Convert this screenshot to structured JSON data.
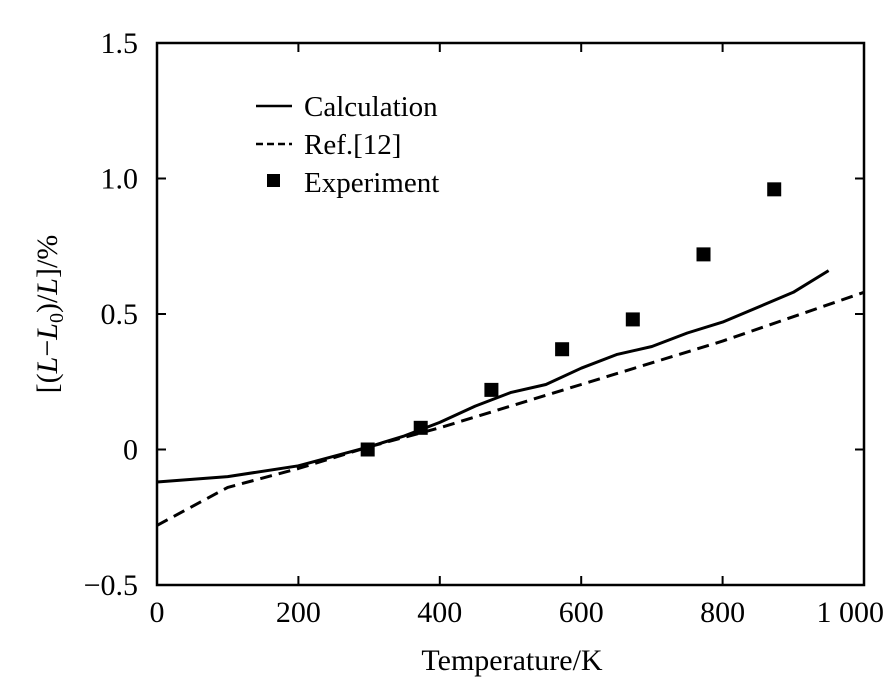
{
  "chart_data": {
    "type": "line",
    "xlabel": "Temperature/K",
    "ylabel": "[(L−L₀)/L]/%",
    "xlim": [
      0,
      1000
    ],
    "ylim": [
      -0.5,
      1.5
    ],
    "x_ticks": [
      0,
      200,
      400,
      600,
      800,
      1000
    ],
    "x_tick_labels": [
      "0",
      "200",
      "400",
      "600",
      "800",
      "1 000"
    ],
    "y_ticks": [
      -0.5,
      0,
      0.5,
      1.0,
      1.5
    ],
    "y_tick_labels": [
      "−0.5",
      "0",
      "0.5",
      "1.0",
      "1.5"
    ],
    "grid": false,
    "legend_position": "top-left",
    "series": [
      {
        "name": "Calculation",
        "style": "solid",
        "x": [
          0,
          100,
          200,
          300,
          350,
          400,
          450,
          500,
          550,
          600,
          650,
          700,
          750,
          800,
          900,
          950
        ],
        "y": [
          -0.12,
          -0.1,
          -0.06,
          0.01,
          0.05,
          0.1,
          0.16,
          0.21,
          0.24,
          0.3,
          0.35,
          0.38,
          0.43,
          0.47,
          0.58,
          0.66
        ]
      },
      {
        "name": "Ref.[12]",
        "style": "dashed",
        "x": [
          0,
          100,
          200,
          300,
          400,
          500,
          600,
          700,
          800,
          900,
          1000
        ],
        "y": [
          -0.28,
          -0.14,
          -0.07,
          0.01,
          0.08,
          0.16,
          0.24,
          0.32,
          0.4,
          0.49,
          0.58
        ]
      },
      {
        "name": "Experiment",
        "style": "marker",
        "x": [
          298,
          373,
          473,
          573,
          673,
          773,
          873
        ],
        "y": [
          0.0,
          0.08,
          0.22,
          0.37,
          0.48,
          0.72,
          0.96
        ]
      }
    ]
  },
  "colors": {
    "ink": "#000000",
    "background": "#ffffff"
  }
}
